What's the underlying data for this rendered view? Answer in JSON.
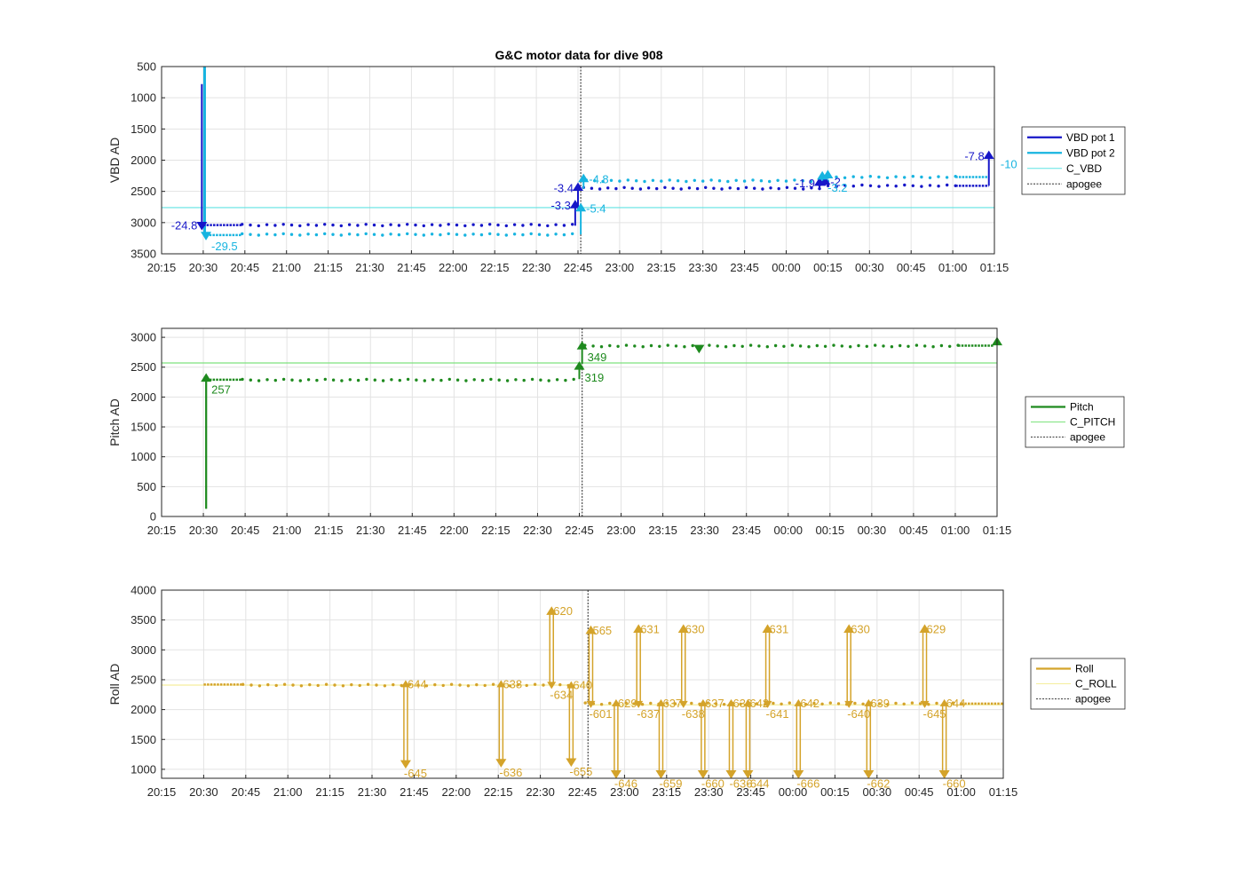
{
  "figure_title": "G&C motor data for dive 908",
  "colors": {
    "vbd1": "#1616c8",
    "vbd2": "#17b4e0",
    "c_vbd": "#5fe3e3",
    "pitch": "#1e8a1e",
    "c_pitch": "#7ee27e",
    "roll": "#d4a32a",
    "c_roll": "#f5ee9c",
    "apogee": "#555555",
    "grid": "#e3e3e3"
  },
  "chart_data": [
    {
      "type": "line",
      "name": "vbd",
      "title": "G&C motor data for dive 908",
      "ylabel": "VBD AD",
      "xlabel": "",
      "xlim": [
        "20:15",
        "01:15"
      ],
      "ylim": [
        500,
        3500
      ],
      "y_reversed": true,
      "x_ticks": [
        "20:15",
        "20:30",
        "20:45",
        "21:00",
        "21:15",
        "21:30",
        "21:45",
        "22:00",
        "22:15",
        "22:30",
        "22:45",
        "23:00",
        "23:15",
        "23:30",
        "23:45",
        "00:00",
        "00:15",
        "00:30",
        "00:45",
        "01:00",
        "01:15"
      ],
      "y_ticks": [
        500,
        1000,
        1500,
        2000,
        2500,
        3000,
        3500
      ],
      "grid": true,
      "legend_position": "right",
      "legend": [
        {
          "label": "VBD pot 1",
          "style": "solid",
          "color_key": "vbd1"
        },
        {
          "label": "VBD pot 2",
          "style": "solid",
          "color_key": "vbd2"
        },
        {
          "label": "C_VBD",
          "style": "thin",
          "color_key": "c_vbd"
        },
        {
          "label": "apogee",
          "style": "dotted",
          "color_key": "apogee"
        }
      ],
      "reference_lines": [
        {
          "label": "C_VBD",
          "y": 2760,
          "color_key": "c_vbd"
        }
      ],
      "apogee_time": "22:46",
      "series": [
        {
          "name": "VBD pot 1",
          "color_key": "vbd1",
          "segments": [
            {
              "from": "20:30",
              "to": "20:44",
              "y": 3040,
              "dense": true
            },
            {
              "from": "20:44",
              "to": "22:43",
              "y": 3040
            },
            {
              "from": "22:47",
              "to": "00:12",
              "y": 2450
            },
            {
              "from": "00:12",
              "to": "01:01",
              "y": 2410
            },
            {
              "from": "01:01",
              "to": "01:13",
              "y": 2410,
              "dense": true
            }
          ]
        },
        {
          "name": "VBD pot 2",
          "color_key": "vbd2",
          "segments": [
            {
              "from": "20:31",
              "to": "20:44",
              "y": 3200,
              "dense": true
            },
            {
              "from": "20:44",
              "to": "22:43",
              "y": 3190
            },
            {
              "from": "22:48",
              "to": "00:15",
              "y": 2330
            },
            {
              "from": "00:15",
              "to": "01:01",
              "y": 2270
            },
            {
              "from": "01:01",
              "to": "01:13",
              "y": 2270,
              "dense": true
            }
          ]
        }
      ],
      "vertical_jumps": [
        {
          "t": "20:29.5",
          "y1": 780,
          "y2": 3040,
          "color_key": "vbd1",
          "width": 2
        },
        {
          "t": "20:30.5",
          "y1": 500,
          "y2": 3200,
          "color_key": "vbd2",
          "width": 3
        }
      ],
      "annotations": [
        {
          "t": "20:29.5",
          "y": 3040,
          "dir": "down",
          "label": "-24.8",
          "color_key": "vbd1",
          "pos": "left"
        },
        {
          "t": "20:31",
          "y": 3200,
          "dir": "down",
          "label": "-29.5",
          "color_key": "vbd2",
          "pos": "below-right"
        },
        {
          "t": "22:44",
          "y0": 3050,
          "y": 2720,
          "dir": "up",
          "label": "-3.3",
          "color_key": "vbd1",
          "pos": "left"
        },
        {
          "t": "22:45",
          "y0": 2760,
          "y": 2440,
          "dir": "up",
          "label": "-3.4",
          "color_key": "vbd1",
          "pos": "left"
        },
        {
          "t": "22:46",
          "y0": 3190,
          "y": 2770,
          "dir": "up",
          "label": "-5.4",
          "color_key": "vbd2",
          "pos": "right"
        },
        {
          "t": "22:47",
          "y0": 2460,
          "y": 2300,
          "dir": "up",
          "label": "-4.8",
          "color_key": "vbd2",
          "pos": "right"
        },
        {
          "t": "00:12",
          "y0": 2450,
          "y": 2360,
          "dir": "up",
          "label": "-1.9",
          "color_key": "vbd1",
          "pos": "left"
        },
        {
          "t": "00:14",
          "y0": 2410,
          "y": 2340,
          "dir": "up",
          "label": "-2",
          "color_key": "vbd1",
          "pos": "right"
        },
        {
          "t": "00:13",
          "y0": 2330,
          "y": 2260,
          "dir": "up",
          "label": "-3.2",
          "color_key": "vbd2",
          "pos": "below-right"
        },
        {
          "t": "00:15",
          "y0": 2300,
          "y": 2240,
          "dir": "up",
          "label": "",
          "color_key": "vbd2",
          "pos": "none"
        },
        {
          "t": "01:13",
          "y0": 2410,
          "y": 1930,
          "dir": "up",
          "label": "-7.8",
          "color_key": "vbd1",
          "pos": "left"
        },
        {
          "t": "01:14",
          "y0": 2270,
          "y": 2270,
          "dir": "none",
          "label": "-10",
          "color_key": "vbd2",
          "pos": "upper-right"
        }
      ]
    },
    {
      "type": "line",
      "name": "pitch",
      "ylabel": "Pitch AD",
      "xlabel": "",
      "title": "",
      "xlim": [
        "20:15",
        "01:15"
      ],
      "ylim": [
        0,
        3150
      ],
      "y_reversed": false,
      "x_ticks": [
        "20:15",
        "20:30",
        "20:45",
        "21:00",
        "21:15",
        "21:30",
        "21:45",
        "22:00",
        "22:15",
        "22:30",
        "22:45",
        "23:00",
        "23:15",
        "23:30",
        "23:45",
        "00:00",
        "00:15",
        "00:30",
        "00:45",
        "01:00",
        "01:15"
      ],
      "y_ticks": [
        0,
        500,
        1000,
        1500,
        2000,
        2500,
        3000
      ],
      "grid": true,
      "legend_position": "right",
      "legend": [
        {
          "label": "Pitch",
          "style": "solid",
          "color_key": "pitch"
        },
        {
          "label": "C_PITCH",
          "style": "thin",
          "color_key": "c_pitch"
        },
        {
          "label": "apogee",
          "style": "dotted",
          "color_key": "apogee"
        }
      ],
      "reference_lines": [
        {
          "label": "C_PITCH",
          "y": 2570,
          "color_key": "c_pitch"
        }
      ],
      "apogee_time": "22:46",
      "series": [
        {
          "name": "Pitch",
          "color_key": "pitch",
          "segments": [
            {
              "from": "20:31",
              "to": "20:44",
              "y": 2290,
              "dense": true
            },
            {
              "from": "20:44",
              "to": "22:43",
              "y": 2285
            },
            {
              "from": "22:47",
              "to": "01:01",
              "y": 2855
            },
            {
              "from": "01:01",
              "to": "01:14",
              "y": 2860,
              "dense": true
            }
          ]
        }
      ],
      "vertical_jumps": [
        {
          "t": "20:31",
          "y1": 130,
          "y2": 2300,
          "color_key": "pitch",
          "width": 2
        }
      ],
      "annotations": [
        {
          "t": "20:31",
          "y0": 130,
          "y": 2310,
          "dir": "up",
          "label": "257",
          "color_key": "pitch",
          "pos": "below-right"
        },
        {
          "t": "22:45",
          "y0": 2300,
          "y": 2510,
          "dir": "up",
          "label": "319",
          "color_key": "pitch",
          "pos": "below-right"
        },
        {
          "t": "22:46",
          "y0": 2560,
          "y": 2850,
          "dir": "up",
          "label": "349",
          "color_key": "pitch",
          "pos": "below-right"
        },
        {
          "t": "23:28",
          "y": 2820,
          "dir": "down",
          "label": "",
          "color_key": "pitch",
          "pos": "none"
        },
        {
          "t": "01:15",
          "y": 2920,
          "dir": "up",
          "label": "",
          "color_key": "pitch",
          "pos": "none"
        }
      ]
    },
    {
      "type": "line",
      "name": "roll",
      "ylabel": "Roll AD",
      "xlabel": "",
      "title": "",
      "xlim": [
        "20:15",
        "01:15"
      ],
      "ylim": [
        850,
        4000
      ],
      "y_reversed": false,
      "x_ticks": [
        "20:15",
        "20:30",
        "20:45",
        "21:00",
        "21:15",
        "21:30",
        "21:45",
        "22:00",
        "22:15",
        "22:30",
        "22:45",
        "23:00",
        "23:15",
        "23:30",
        "23:45",
        "00:00",
        "00:15",
        "00:30",
        "00:45",
        "01:00",
        "01:15"
      ],
      "y_ticks": [
        1000,
        1500,
        2000,
        2500,
        3000,
        3500,
        4000
      ],
      "grid": true,
      "legend_position": "right",
      "legend": [
        {
          "label": "Roll",
          "style": "solid",
          "color_key": "roll"
        },
        {
          "label": "C_ROLL",
          "style": "thin",
          "color_key": "c_roll"
        },
        {
          "label": "apogee",
          "style": "dotted",
          "color_key": "apogee"
        }
      ],
      "reference_lines": [
        {
          "label": "C_ROLL",
          "y": 2410,
          "from": "20:15",
          "to": "22:47",
          "color_key": "c_roll"
        },
        {
          "label": "C_ROLL",
          "y": 2080,
          "from": "22:47",
          "to": "01:15",
          "color_key": "c_roll"
        }
      ],
      "apogee_time": "22:47",
      "series": [
        {
          "name": "Roll",
          "color_key": "roll",
          "segments": [
            {
              "from": "20:30",
              "to": "20:44",
              "y": 2420,
              "dense": true
            },
            {
              "from": "20:44",
              "to": "22:40",
              "y": 2410
            },
            {
              "from": "22:46",
              "to": "01:00",
              "y": 2100
            },
            {
              "from": "01:00",
              "to": "01:15",
              "y": 2100,
              "dense": true
            }
          ]
        }
      ],
      "vertical_jumps": [],
      "annotations": [
        {
          "t": "21:42",
          "y0": 2420,
          "y": 1100,
          "dir": "down",
          "label": "644",
          "label2": "-645",
          "pos": "pair"
        },
        {
          "t": "22:16",
          "y0": 2420,
          "y": 1120,
          "dir": "down",
          "label": "638",
          "label2": "-636",
          "pos": "pair"
        },
        {
          "t": "22:34",
          "y0": 2420,
          "y": 3640,
          "dir": "up",
          "label": "620",
          "label2": "-634",
          "pos": "pair-up"
        },
        {
          "t": "22:41",
          "y0": 2400,
          "y": 1130,
          "dir": "down",
          "label": "640",
          "label2": "-655",
          "pos": "pair"
        },
        {
          "t": "22:48",
          "y0": 2100,
          "y": 3320,
          "dir": "up",
          "label": "565",
          "label2": "-601",
          "pos": "pair-up"
        },
        {
          "t": "22:57",
          "y0": 2100,
          "y": 930,
          "dir": "down",
          "label": "629",
          "label2": "-646",
          "pos": "pair"
        },
        {
          "t": "23:05",
          "y0": 2100,
          "y": 3340,
          "dir": "up",
          "label": "631",
          "label2": "-637",
          "pos": "pair-up"
        },
        {
          "t": "23:13",
          "y0": 2100,
          "y": 930,
          "dir": "down",
          "label": "637",
          "label2": "-659",
          "pos": "pair"
        },
        {
          "t": "23:21",
          "y0": 2100,
          "y": 3340,
          "dir": "up",
          "label": "630",
          "label2": "-638",
          "pos": "pair-up"
        },
        {
          "t": "23:28",
          "y0": 2100,
          "y": 930,
          "dir": "down",
          "label": "637",
          "label2": "-660",
          "pos": "pair"
        },
        {
          "t": "23:38",
          "y0": 2100,
          "y": 930,
          "dir": "down",
          "label": "636",
          "label2": "-636",
          "pos": "pair"
        },
        {
          "t": "23:44",
          "y0": 2100,
          "y": 930,
          "dir": "down",
          "label": "642",
          "label2": "-644",
          "pos": "pair"
        },
        {
          "t": "23:51",
          "y0": 2100,
          "y": 3340,
          "dir": "up",
          "label": "631",
          "label2": "-641",
          "pos": "pair-up"
        },
        {
          "t": "00:02",
          "y0": 2100,
          "y": 930,
          "dir": "down",
          "label": "642",
          "label2": "-666",
          "pos": "pair"
        },
        {
          "t": "00:20",
          "y0": 2100,
          "y": 3340,
          "dir": "up",
          "label": "630",
          "label2": "-640",
          "pos": "pair-up"
        },
        {
          "t": "00:27",
          "y0": 2100,
          "y": 930,
          "dir": "down",
          "label": "639",
          "label2": "-662",
          "pos": "pair"
        },
        {
          "t": "00:47",
          "y0": 2100,
          "y": 3340,
          "dir": "up",
          "label": "629",
          "label2": "-645",
          "pos": "pair-up"
        },
        {
          "t": "00:54",
          "y0": 2100,
          "y": 930,
          "dir": "down",
          "label": "644",
          "label2": "-660",
          "pos": "pair"
        }
      ]
    }
  ]
}
